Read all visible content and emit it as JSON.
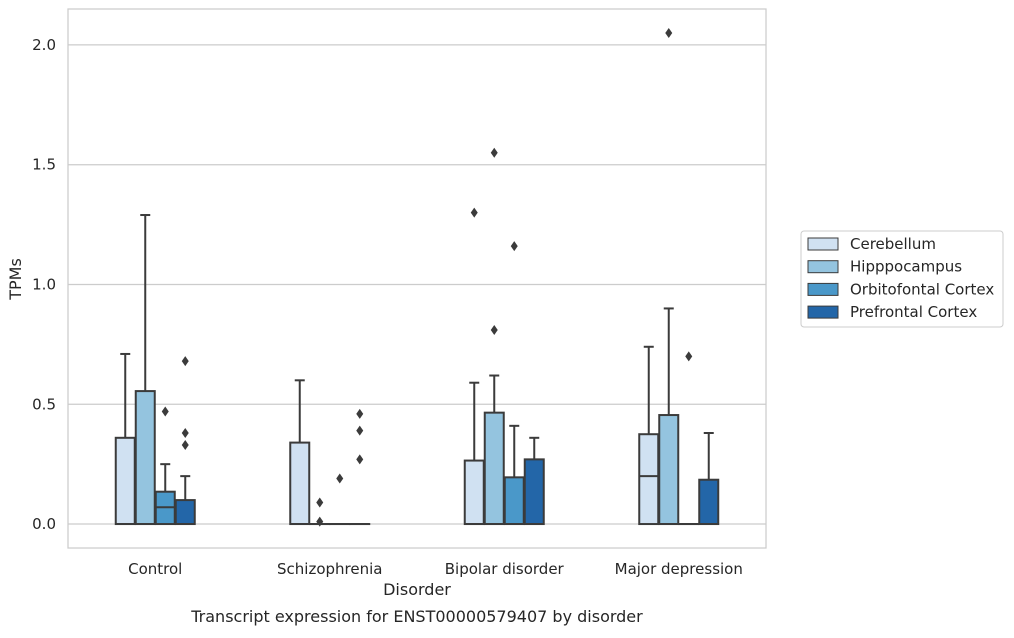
{
  "chart_data": {
    "type": "box",
    "title": "",
    "caption": "Transcript expression for ENST00000579407 by disorder",
    "xlabel": "Disorder",
    "ylabel": "TPMs",
    "ylim": [
      -0.1,
      2.15
    ],
    "yticks": [
      0.0,
      0.5,
      1.0,
      1.5,
      2.0
    ],
    "ytick_labels": [
      "0.0",
      "0.5",
      "1.0",
      "1.5",
      "2.0"
    ],
    "grid": "horizontal",
    "legend_position": "right",
    "categories": [
      "Control",
      "Schizophrenia",
      "Bipolar disorder",
      "Major depression"
    ],
    "series": [
      {
        "name": "Cerebellum",
        "color": "#d0e1f2",
        "boxes": [
          {
            "q1": 0.0,
            "median": 0.0,
            "q3": 0.36,
            "whisker_low": 0.0,
            "whisker_high": 0.71,
            "outliers": []
          },
          {
            "q1": 0.0,
            "median": 0.0,
            "q3": 0.34,
            "whisker_low": 0.0,
            "whisker_high": 0.6,
            "outliers": []
          },
          {
            "q1": 0.0,
            "median": 0.0,
            "q3": 0.265,
            "whisker_low": 0.0,
            "whisker_high": 0.59,
            "outliers": [
              1.3
            ]
          },
          {
            "q1": 0.0,
            "median": 0.2,
            "q3": 0.375,
            "whisker_low": 0.0,
            "whisker_high": 0.74,
            "outliers": []
          }
        ]
      },
      {
        "name": "Hipppocampus",
        "color": "#94c4df",
        "boxes": [
          {
            "q1": 0.0,
            "median": 0.0,
            "q3": 0.555,
            "whisker_low": 0.0,
            "whisker_high": 1.29,
            "outliers": []
          },
          {
            "q1": 0.0,
            "median": 0.0,
            "q3": 0.0,
            "whisker_low": 0.0,
            "whisker_high": 0.0,
            "outliers": [
              0.09,
              0.01
            ]
          },
          {
            "q1": 0.0,
            "median": 0.0,
            "q3": 0.465,
            "whisker_low": 0.0,
            "whisker_high": 0.62,
            "outliers": [
              1.55,
              0.81
            ]
          },
          {
            "q1": 0.0,
            "median": 0.0,
            "q3": 0.455,
            "whisker_low": 0.0,
            "whisker_high": 0.9,
            "outliers": [
              2.05
            ]
          }
        ]
      },
      {
        "name": "Orbitofontal Cortex",
        "color": "#4a98c9",
        "boxes": [
          {
            "q1": 0.0,
            "median": 0.07,
            "q3": 0.135,
            "whisker_low": 0.0,
            "whisker_high": 0.25,
            "outliers": [
              0.47
            ]
          },
          {
            "q1": 0.0,
            "median": 0.0,
            "q3": 0.0,
            "whisker_low": 0.0,
            "whisker_high": 0.0,
            "outliers": [
              0.19
            ]
          },
          {
            "q1": 0.0,
            "median": 0.0,
            "q3": 0.195,
            "whisker_low": 0.0,
            "whisker_high": 0.41,
            "outliers": [
              1.16
            ]
          },
          {
            "q1": 0.0,
            "median": 0.0,
            "q3": 0.0,
            "whisker_low": 0.0,
            "whisker_high": 0.0,
            "outliers": [
              0.7
            ]
          }
        ]
      },
      {
        "name": "Prefrontal Cortex",
        "color": "#2366a8",
        "boxes": [
          {
            "q1": 0.0,
            "median": 0.0,
            "q3": 0.1,
            "whisker_low": 0.0,
            "whisker_high": 0.2,
            "outliers": [
              0.68,
              0.38,
              0.33
            ]
          },
          {
            "q1": 0.0,
            "median": 0.0,
            "q3": 0.0,
            "whisker_low": 0.0,
            "whisker_high": 0.0,
            "outliers": [
              0.46,
              0.39,
              0.27
            ]
          },
          {
            "q1": 0.0,
            "median": 0.0,
            "q3": 0.27,
            "whisker_low": 0.0,
            "whisker_high": 0.36,
            "outliers": []
          },
          {
            "q1": 0.0,
            "median": 0.0,
            "q3": 0.185,
            "whisker_low": 0.0,
            "whisker_high": 0.38,
            "outliers": []
          }
        ]
      }
    ]
  }
}
